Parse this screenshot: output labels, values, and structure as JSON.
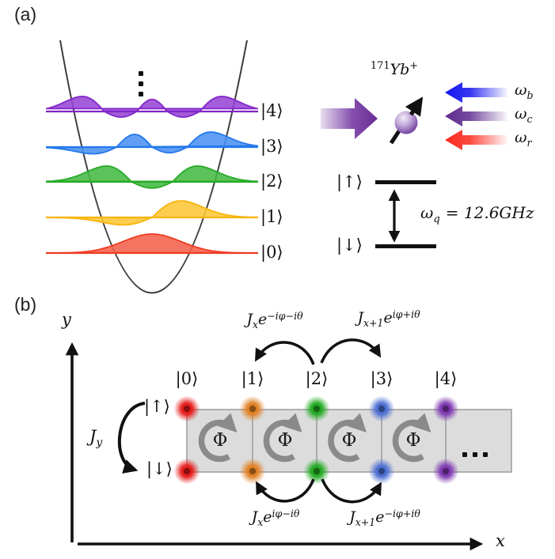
{
  "figure": {
    "panel_a": {
      "label": "(a)",
      "oscillator": {
        "ellipsis_vertical": "⋮",
        "levels": [
          {
            "n": 0,
            "ket": "|0⟩",
            "color": "#ee3a22",
            "fill": "#f4614b"
          },
          {
            "n": 1,
            "ket": "|1⟩",
            "color": "#f7b50c",
            "fill": "#fcc636"
          },
          {
            "n": 2,
            "ket": "|2⟩",
            "color": "#27ac27",
            "fill": "#45ba45"
          },
          {
            "n": 3,
            "ket": "|3⟩",
            "color": "#2478ec",
            "fill": "#4a92f2"
          },
          {
            "n": 4,
            "ket": "|4⟩",
            "color": "#8226ca",
            "fill": "#9645d5"
          }
        ]
      },
      "ion": {
        "isotope": "171",
        "element": "Yb",
        "charge": "+"
      },
      "drive_arrow_color": "#7030a0",
      "lasers": [
        {
          "base": "ω",
          "sub": "b",
          "color": "#1414f0"
        },
        {
          "base": "ω",
          "sub": "c",
          "color": "#5e2b8d"
        },
        {
          "base": "ω",
          "sub": "r",
          "color": "#fa2a1e"
        }
      ],
      "qubit": {
        "up_ket": "|↑⟩",
        "down_ket": "|↓⟩",
        "freq_base": "ω",
        "freq_sub": "q",
        "freq_value": "= 12.6GHz"
      }
    },
    "panel_b": {
      "label": "(b)",
      "axes": {
        "x": "x",
        "y": "y"
      },
      "spin_ladder": {
        "up_ket": "|↑⟩",
        "down_ket": "|↓⟩",
        "jy_base": "J",
        "jy_sub": "y",
        "flux_symbol": "Φ",
        "ellipsis": "...",
        "sites": [
          {
            "ket": "|0⟩",
            "color": "#e51717"
          },
          {
            "ket": "|1⟩",
            "color": "#e07e22"
          },
          {
            "ket": "|2⟩",
            "color": "#1ea81e"
          },
          {
            "ket": "|3⟩",
            "color": "#4a6cd2"
          },
          {
            "ket": "|4⟩",
            "color": "#7c35b0"
          }
        ]
      },
      "couplings": {
        "top_left": {
          "base": "J",
          "sub": "x",
          "e_sym": "e",
          "sup": "−iφ−iθ"
        },
        "top_right": {
          "base": "J",
          "sub": "x+1",
          "e_sym": "e",
          "sup": "iφ+iθ"
        },
        "bottom_left": {
          "base": "J",
          "sub": "x",
          "e_sym": "e",
          "sup": "iφ−iθ"
        },
        "bottom_right": {
          "base": "J",
          "sub": "x+1",
          "e_sym": "e",
          "sup": "−iφ+iθ"
        }
      }
    }
  }
}
